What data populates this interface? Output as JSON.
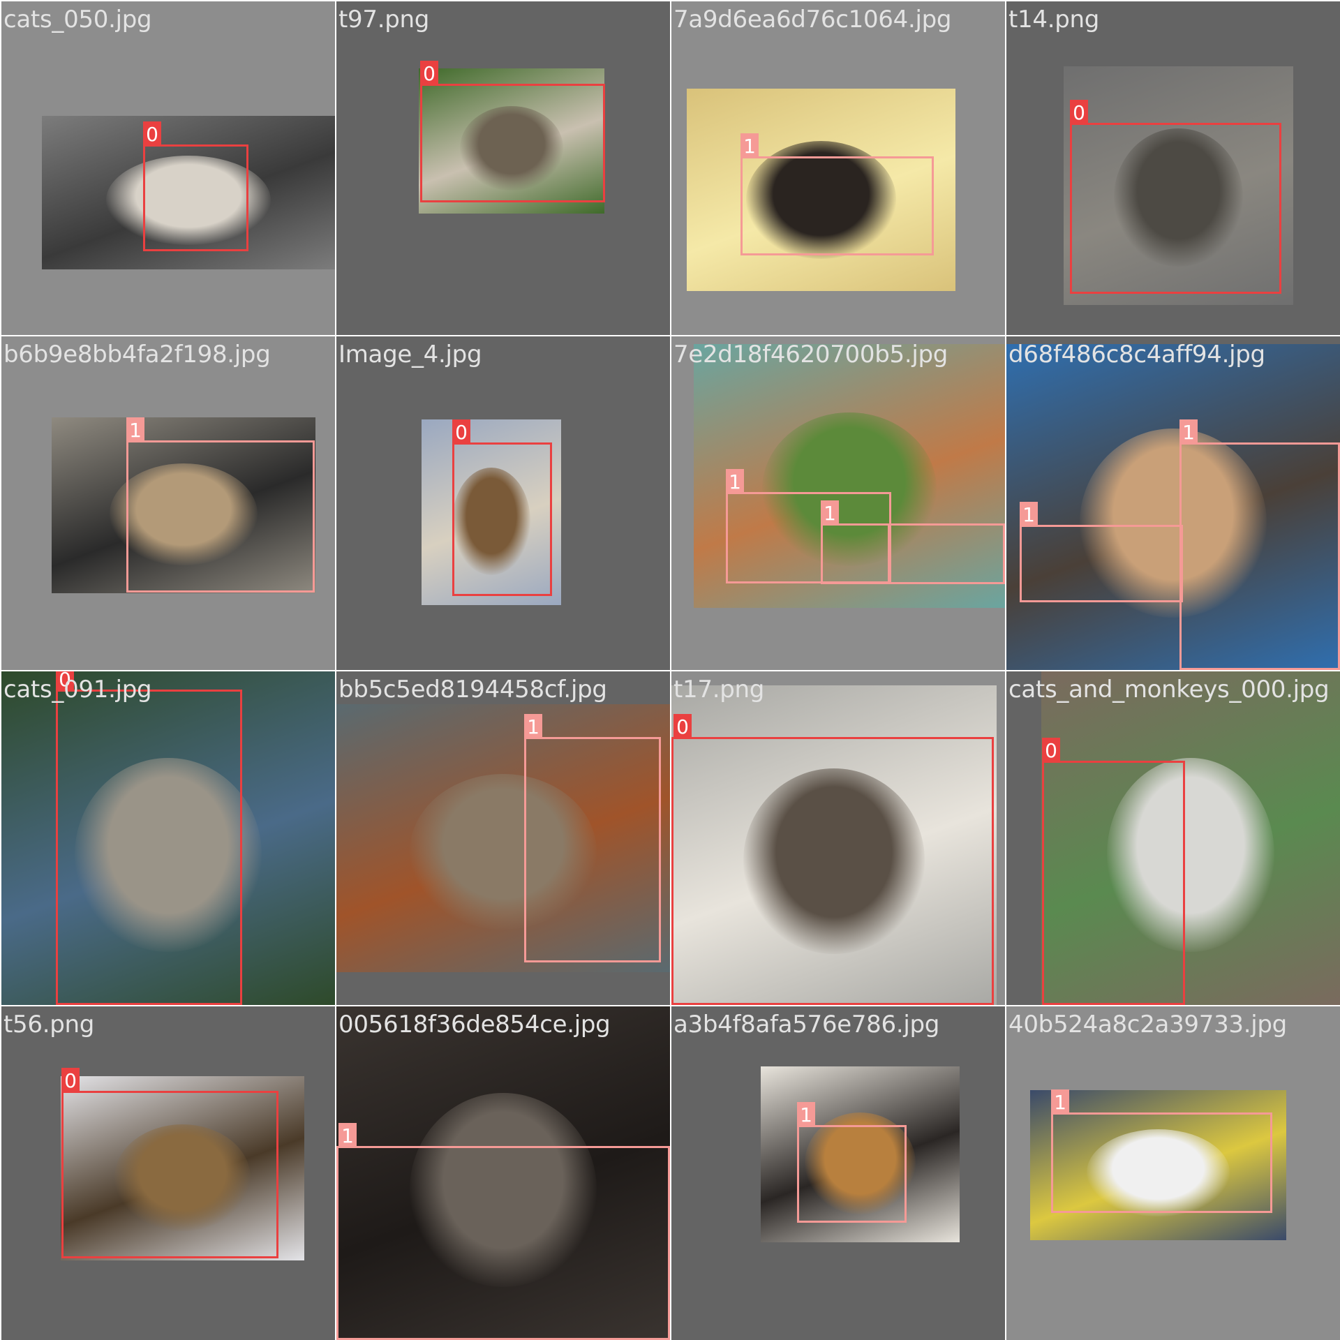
{
  "colors": {
    "class_0": "#ea4040",
    "class_1": "#f59a96",
    "filename_text": "#e3e3e3"
  },
  "tiles": [
    {
      "filename": "cats_050.jpg",
      "bg": "light",
      "photo_subject": "kitten wrapped in knitted blanket",
      "photo_colors": [
        "#7c7c7c",
        "#d8d2c8",
        "#3a3a3a"
      ],
      "boxes": [
        {
          "label": "0"
        }
      ]
    },
    {
      "filename": "t97.png",
      "bg": "dark",
      "photo_subject": "tabby cat standing on stone",
      "photo_colors": [
        "#3f6a2a",
        "#6d6252",
        "#c9c0b0"
      ],
      "boxes": [
        {
          "label": "0"
        }
      ]
    },
    {
      "filename": "7a9d6ea6d76c1064.jpg",
      "bg": "light",
      "photo_subject": "black dog lying on rug in sunny room",
      "photo_colors": [
        "#d9c27a",
        "#2a2420",
        "#f5e9a8"
      ],
      "boxes": [
        {
          "label": "1"
        }
      ]
    },
    {
      "filename": "t14.png",
      "bg": "dark",
      "photo_subject": "gray tabby kitten sitting",
      "photo_colors": [
        "#6f6f6f",
        "#4d4a44",
        "#8a8780"
      ],
      "boxes": [
        {
          "label": "0"
        }
      ]
    },
    {
      "filename": "b6b9e8bb4fa2f198.jpg",
      "bg": "light",
      "photo_subject": "shiba puppy behind chain-link fence",
      "photo_colors": [
        "#8f8a80",
        "#b39a78",
        "#2a2a2a"
      ],
      "boxes": [
        {
          "label": "1"
        }
      ]
    },
    {
      "filename": "Image_4.jpg",
      "bg": "dark",
      "photo_subject": "tabby cat sitting outdoors",
      "photo_colors": [
        "#9aa8c0",
        "#7a5a38",
        "#d8d0c0"
      ],
      "boxes": [
        {
          "label": "0"
        }
      ]
    },
    {
      "filename": "7e2d18f4620700b5.jpg",
      "bg": "light",
      "photo_subject": "foxes playing on grass by shed",
      "photo_colors": [
        "#6aa5a0",
        "#5c8a3a",
        "#c07a48"
      ],
      "boxes": [
        {
          "label": "1"
        },
        {
          "label": "1"
        },
        {
          "label": "1"
        }
      ]
    },
    {
      "filename": "d68f486c8c4aff94.jpg",
      "bg": "dark",
      "photo_subject": "man in pool with dogs",
      "photo_colors": [
        "#2f6fb0",
        "#c9a078",
        "#4a4038"
      ],
      "boxes": [
        {
          "label": "1"
        },
        {
          "label": "1"
        }
      ]
    },
    {
      "filename": "cats_091.jpg",
      "bg": "dark",
      "photo_subject": "kitten meowing",
      "photo_colors": [
        "#2e4a2a",
        "#9a9488",
        "#4a6a88"
      ],
      "boxes": [
        {
          "label": "0"
        }
      ]
    },
    {
      "filename": "bb5c5ed8194458cf.jpg",
      "bg": "dark",
      "photo_subject": "basset hound running on beach",
      "photo_colors": [
        "#5a6a70",
        "#8a7a66",
        "#a0542a"
      ],
      "boxes": [
        {
          "label": "1"
        }
      ]
    },
    {
      "filename": "t17.png",
      "bg": "light",
      "photo_subject": "tabby cat crouching",
      "photo_colors": [
        "#a8a8a4",
        "#5a5046",
        "#e8e4dc"
      ],
      "boxes": [
        {
          "label": "0"
        }
      ]
    },
    {
      "filename": "cats_and_monkeys_000.jpg",
      "bg": "dark",
      "photo_subject": "monkey hugging cat",
      "photo_colors": [
        "#7a6a5e",
        "#d8d8d4",
        "#5a8a50"
      ],
      "boxes": [
        {
          "label": "0"
        }
      ]
    },
    {
      "filename": "t56.png",
      "bg": "dark",
      "photo_subject": "tabby cat close-up",
      "photo_colors": [
        "#e4e4e8",
        "#8a6a40",
        "#4a3a28"
      ],
      "boxes": [
        {
          "label": "0"
        }
      ]
    },
    {
      "filename": "005618f36de854ce.jpg",
      "bg": "dark",
      "photo_subject": "black and white cat sleeping in bed",
      "photo_colors": [
        "#3a3430",
        "#6a625a",
        "#1e1a18"
      ],
      "boxes": [
        {
          "label": "1"
        }
      ]
    },
    {
      "filename": "a3b4f8afa576e786.jpg",
      "bg": "dark",
      "photo_subject": "puppy sleeping in box",
      "photo_colors": [
        "#e8e4dc",
        "#b8803e",
        "#2a2624"
      ],
      "boxes": [
        {
          "label": "1"
        }
      ]
    },
    {
      "filename": "40b524a8c2a39733.jpg",
      "bg": "light",
      "photo_subject": "white dog lying on blanket",
      "photo_colors": [
        "#3a4a6a",
        "#f0f0f0",
        "#dcc840"
      ],
      "boxes": [
        {
          "label": "1"
        }
      ]
    }
  ]
}
